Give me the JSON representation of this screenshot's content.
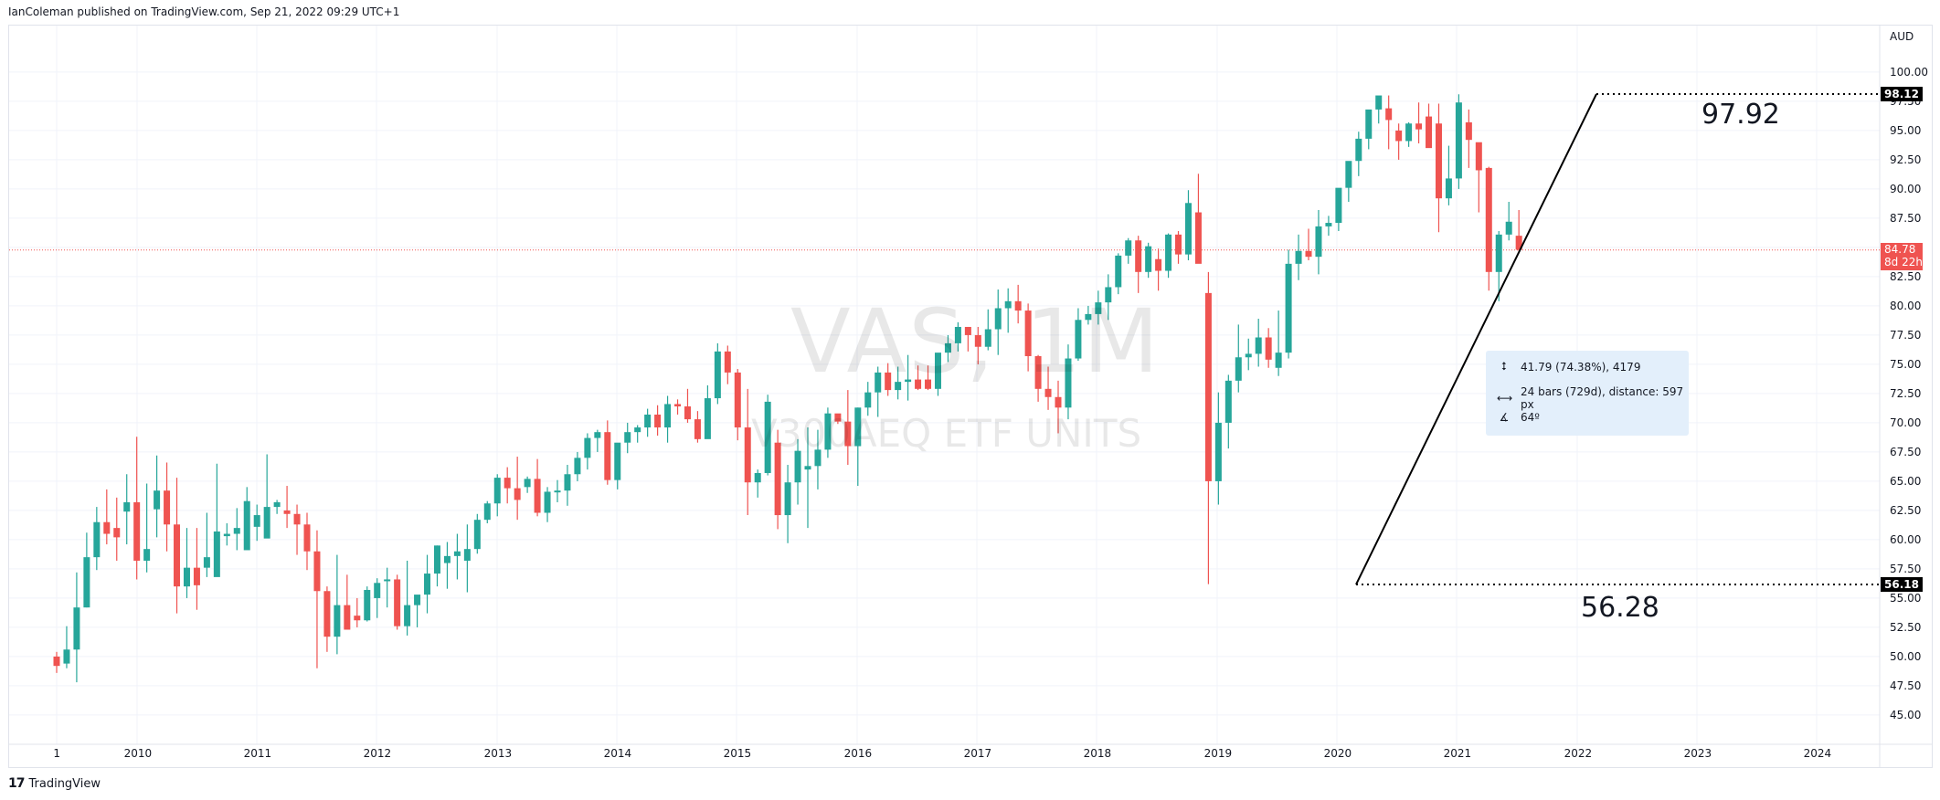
{
  "header": {
    "published": "IanColeman published on TradingView.com, Sep 21, 2022 09:29 UTC+1"
  },
  "footer": {
    "logo": "17",
    "brand": "TradingView"
  },
  "watermark": {
    "symbol": "VAS, 1M",
    "description": "V300AEQ ETF UNITS"
  },
  "price_axis": {
    "currency": "AUD"
  },
  "badges": {
    "high": {
      "value": "98.12",
      "color": "#000000"
    },
    "low": {
      "value": "56.18",
      "color": "#000000"
    },
    "last": {
      "value": "84.78",
      "countdown": "8d 22h",
      "color": "#ef5350"
    }
  },
  "annotations": {
    "high_text": "97.92",
    "low_text": "56.28"
  },
  "measure_tooltip": {
    "price_range": "41.79 (74.38%), 4179",
    "bars_range": "24 bars (729d), distance: 597 px",
    "angle": "64º"
  },
  "colors": {
    "up": "#26a69a",
    "down": "#ef5350",
    "grid": "#f0f3fa",
    "trend": "#000000"
  },
  "chart_data": {
    "type": "candlestick",
    "title": "VAS, 1M — V300AEQ ETF UNITS",
    "xlabel": "",
    "ylabel": "AUD",
    "y_ticks": [
      "100.00",
      "97.50",
      "95.00",
      "92.50",
      "90.00",
      "87.50",
      "82.50",
      "80.00",
      "77.50",
      "75.00",
      "72.50",
      "70.00",
      "67.50",
      "65.00",
      "62.50",
      "60.00",
      "57.50",
      "55.00",
      "52.50",
      "50.00",
      "47.50",
      "45.00"
    ],
    "x_ticks": [
      "1",
      "2010",
      "2011",
      "2012",
      "2013",
      "2014",
      "2015",
      "2016",
      "2017",
      "2018",
      "2019",
      "2020",
      "2021",
      "2022",
      "2023",
      "2024"
    ],
    "ylim": [
      43,
      102
    ],
    "grid": true,
    "start": "2009-05",
    "interval": "1M",
    "ohlc": [
      [
        50.0,
        50.4,
        48.6,
        49.2
      ],
      [
        49.4,
        52.6,
        49.0,
        50.6
      ],
      [
        50.6,
        57.2,
        47.8,
        54.2
      ],
      [
        54.2,
        60.6,
        54.2,
        58.5
      ],
      [
        58.5,
        62.8,
        57.4,
        61.5
      ],
      [
        61.5,
        64.3,
        59.6,
        60.5
      ],
      [
        61.0,
        63.6,
        58.2,
        60.2
      ],
      [
        62.4,
        65.6,
        59.6,
        63.2
      ],
      [
        63.2,
        68.8,
        56.6,
        58.2
      ],
      [
        58.2,
        64.8,
        57.2,
        59.2
      ],
      [
        62.6,
        67.2,
        60.2,
        64.2
      ],
      [
        64.2,
        66.6,
        59.0,
        61.3
      ],
      [
        61.3,
        65.3,
        53.7,
        56.0
      ],
      [
        56.0,
        61.0,
        55.0,
        57.6
      ],
      [
        57.6,
        61.0,
        54.0,
        56.1
      ],
      [
        57.6,
        62.3,
        56.8,
        58.5
      ],
      [
        56.8,
        66.5,
        57.2,
        60.7
      ],
      [
        60.3,
        61.4,
        59.5,
        60.5
      ],
      [
        60.5,
        62.7,
        59.1,
        61.0
      ],
      [
        59.1,
        64.5,
        59.3,
        63.3
      ],
      [
        61.1,
        63.0,
        59.9,
        62.1
      ],
      [
        60.1,
        67.3,
        60.3,
        62.8
      ],
      [
        62.8,
        63.4,
        62.2,
        63.2
      ],
      [
        62.5,
        64.6,
        61.0,
        62.2
      ],
      [
        62.2,
        63.0,
        58.7,
        61.3
      ],
      [
        61.3,
        62.3,
        57.4,
        59.0
      ],
      [
        59.0,
        60.8,
        49.0,
        55.6
      ],
      [
        55.6,
        56.0,
        50.4,
        51.7
      ],
      [
        51.7,
        58.7,
        50.2,
        54.4
      ],
      [
        54.4,
        57.0,
        52.8,
        52.3
      ],
      [
        53.5,
        55.0,
        52.5,
        53.1
      ],
      [
        53.1,
        56.0,
        53.0,
        55.7
      ],
      [
        55.0,
        56.7,
        53.3,
        56.3
      ],
      [
        56.6,
        57.6,
        54.2,
        56.6
      ],
      [
        56.6,
        57.0,
        52.3,
        52.6
      ],
      [
        52.6,
        58.2,
        51.8,
        54.4
      ],
      [
        54.4,
        55.1,
        52.5,
        55.3
      ],
      [
        55.3,
        58.7,
        53.7,
        57.1
      ],
      [
        57.1,
        59.5,
        56.0,
        59.5
      ],
      [
        58.0,
        59.8,
        55.8,
        58.6
      ],
      [
        58.6,
        60.5,
        56.6,
        59.0
      ],
      [
        58.2,
        61.3,
        55.5,
        59.2
      ],
      [
        59.2,
        62.2,
        58.8,
        61.7
      ],
      [
        61.7,
        63.3,
        61.4,
        63.1
      ],
      [
        63.1,
        65.6,
        62.0,
        65.3
      ],
      [
        65.3,
        66.2,
        63.1,
        64.4
      ],
      [
        64.4,
        67.1,
        61.7,
        63.4
      ],
      [
        64.5,
        65.4,
        64.0,
        65.2
      ],
      [
        65.2,
        66.9,
        62.0,
        62.3
      ],
      [
        62.3,
        64.5,
        61.5,
        64.1
      ],
      [
        64.1,
        65.1,
        63.2,
        64.2
      ],
      [
        64.2,
        66.4,
        62.9,
        65.6
      ],
      [
        65.6,
        67.5,
        65.0,
        67.0
      ],
      [
        67.0,
        69.1,
        66.0,
        68.7
      ],
      [
        68.7,
        69.4,
        67.5,
        69.2
      ],
      [
        69.2,
        70.2,
        64.7,
        65.1
      ],
      [
        65.1,
        68.2,
        64.3,
        68.3
      ],
      [
        68.3,
        70.0,
        67.4,
        69.2
      ],
      [
        69.2,
        69.8,
        68.3,
        69.6
      ],
      [
        69.6,
        71.2,
        68.8,
        70.7
      ],
      [
        70.7,
        71.5,
        68.9,
        69.6
      ],
      [
        69.6,
        72.3,
        68.3,
        71.6
      ],
      [
        71.6,
        72.0,
        70.7,
        71.4
      ],
      [
        71.4,
        72.9,
        70.0,
        70.3
      ],
      [
        70.3,
        71.0,
        68.3,
        68.6
      ],
      [
        68.6,
        73.2,
        68.8,
        72.1
      ],
      [
        72.1,
        76.8,
        71.6,
        76.1
      ],
      [
        76.1,
        76.6,
        73.3,
        74.3
      ],
      [
        74.3,
        74.6,
        68.5,
        69.6
      ],
      [
        69.6,
        72.9,
        62.1,
        64.9
      ],
      [
        64.9,
        66.0,
        63.6,
        65.7
      ],
      [
        65.7,
        72.4,
        65.5,
        71.8
      ],
      [
        68.3,
        69.4,
        60.9,
        62.1
      ],
      [
        62.1,
        66.4,
        59.7,
        64.9
      ],
      [
        64.9,
        68.6,
        63.0,
        67.6
      ],
      [
        66.0,
        69.6,
        61.0,
        66.3
      ],
      [
        66.3,
        69.4,
        64.3,
        67.7
      ],
      [
        67.7,
        71.3,
        67.0,
        70.8
      ],
      [
        70.8,
        70.6,
        69.9,
        70.1
      ],
      [
        70.1,
        72.8,
        66.4,
        68.0
      ],
      [
        68.0,
        71.3,
        64.6,
        71.3
      ],
      [
        71.3,
        73.5,
        70.6,
        72.6
      ],
      [
        72.6,
        74.8,
        70.5,
        74.3
      ],
      [
        74.3,
        75.1,
        72.3,
        72.8
      ],
      [
        72.8,
        74.8,
        72.0,
        73.5
      ],
      [
        73.5,
        75.8,
        71.9,
        73.7
      ],
      [
        73.7,
        74.9,
        72.8,
        72.9
      ],
      [
        73.7,
        74.9,
        72.8,
        72.9
      ],
      [
        72.9,
        75.5,
        72.3,
        76.0
      ],
      [
        76.0,
        77.5,
        75.2,
        76.8
      ],
      [
        76.8,
        78.6,
        76.1,
        78.2
      ],
      [
        78.2,
        78.2,
        76.1,
        77.5
      ],
      [
        77.5,
        78.2,
        75.0,
        76.5
      ],
      [
        76.5,
        79.7,
        76.2,
        78.0
      ],
      [
        78.0,
        81.4,
        75.8,
        79.8
      ],
      [
        79.8,
        81.5,
        77.7,
        80.4
      ],
      [
        80.4,
        81.8,
        78.5,
        79.6
      ],
      [
        79.6,
        80.2,
        74.4,
        75.7
      ],
      [
        75.7,
        75.8,
        71.8,
        72.9
      ],
      [
        72.9,
        74.8,
        71.1,
        72.2
      ],
      [
        72.2,
        73.6,
        69.1,
        71.3
      ],
      [
        71.3,
        76.7,
        70.3,
        75.5
      ],
      [
        75.5,
        79.8,
        75.3,
        78.8
      ],
      [
        78.8,
        80.0,
        78.4,
        79.3
      ],
      [
        79.3,
        81.3,
        78.4,
        80.3
      ],
      [
        80.3,
        82.7,
        78.8,
        81.6
      ],
      [
        81.6,
        84.5,
        81.0,
        84.3
      ],
      [
        84.3,
        85.8,
        83.6,
        85.6
      ],
      [
        85.6,
        86.0,
        81.1,
        82.9
      ],
      [
        82.9,
        85.4,
        82.4,
        85.1
      ],
      [
        84.0,
        84.9,
        81.3,
        83.0
      ],
      [
        83.0,
        86.2,
        82.4,
        86.1
      ],
      [
        86.1,
        86.4,
        83.6,
        84.4
      ],
      [
        84.4,
        89.9,
        83.9,
        88.8
      ],
      [
        88.0,
        91.3,
        83.7,
        83.6
      ],
      [
        81.1,
        82.9,
        56.2,
        65.0
      ],
      [
        65.0,
        72.6,
        63.0,
        70.0
      ],
      [
        70.0,
        74.1,
        67.8,
        73.6
      ],
      [
        73.6,
        78.4,
        72.6,
        75.6
      ],
      [
        75.6,
        77.2,
        74.5,
        75.9
      ],
      [
        75.9,
        78.9,
        74.8,
        77.3
      ],
      [
        77.3,
        78.1,
        74.7,
        75.4
      ],
      [
        74.7,
        79.6,
        74.0,
        76.0
      ],
      [
        76.0,
        84.8,
        75.5,
        83.6
      ],
      [
        83.6,
        86.1,
        82.2,
        84.7
      ],
      [
        84.7,
        86.6,
        83.9,
        84.2
      ],
      [
        84.2,
        88.2,
        82.7,
        86.8
      ],
      [
        86.8,
        87.7,
        86.0,
        87.1
      ],
      [
        87.1,
        89.9,
        86.4,
        90.1
      ],
      [
        90.1,
        92.2,
        88.9,
        92.4
      ],
      [
        92.4,
        94.9,
        91.1,
        94.3
      ],
      [
        94.3,
        96.3,
        93.4,
        96.8
      ],
      [
        96.8,
        97.9,
        95.6,
        98.0
      ],
      [
        96.9,
        98.0,
        93.4,
        95.9
      ],
      [
        95.0,
        95.6,
        92.5,
        94.1
      ],
      [
        94.1,
        95.7,
        93.6,
        95.6
      ],
      [
        95.6,
        97.4,
        93.9,
        95.1
      ],
      [
        96.2,
        97.3,
        94.4,
        93.5
      ],
      [
        95.6,
        97.3,
        86.3,
        89.2
      ],
      [
        89.2,
        93.7,
        88.6,
        90.9
      ],
      [
        90.9,
        98.1,
        90.0,
        97.4
      ],
      [
        95.7,
        96.8,
        91.8,
        94.2
      ],
      [
        94.0,
        93.7,
        88.0,
        91.6
      ],
      [
        91.8,
        91.9,
        81.3,
        82.9
      ],
      [
        82.9,
        86.4,
        80.4,
        86.1
      ],
      [
        86.1,
        88.9,
        85.6,
        87.2
      ],
      [
        86.0,
        88.2,
        84.7,
        84.8
      ]
    ]
  }
}
